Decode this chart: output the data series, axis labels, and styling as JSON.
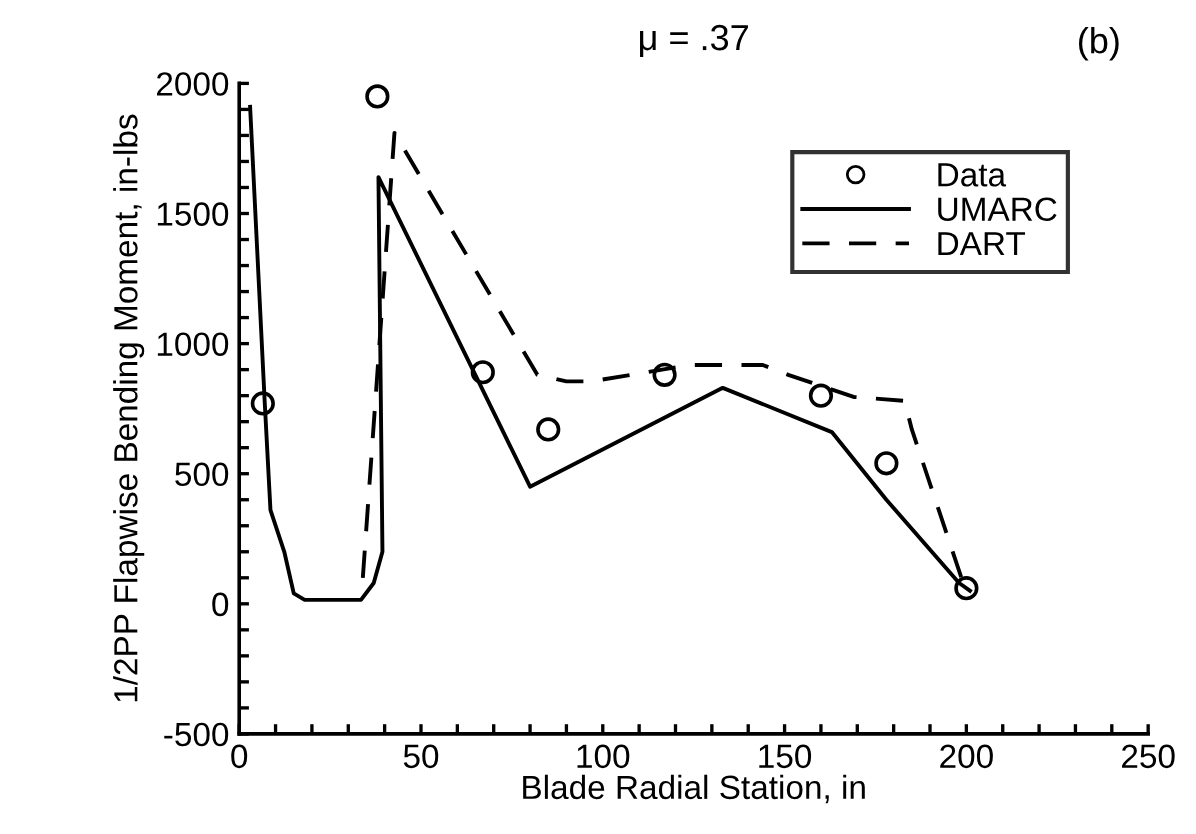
{
  "chart_data": {
    "type": "line",
    "title": "μ = .37",
    "xlabel": "Blade Radial Station, in",
    "ylabel": "1/2PP Flapwise Bending Moment, in-lbs",
    "annotations": [
      "(b)"
    ],
    "series": [
      {
        "name": "Data",
        "type": "scatter",
        "color": "#000000",
        "marker": "circle",
        "x": [
          6.5,
          38,
          67,
          85,
          117,
          160,
          178,
          200
        ],
        "values": [
          770,
          1950,
          890,
          670,
          880,
          800,
          540,
          60
        ]
      },
      {
        "name": "UMARC",
        "color": "#000000",
        "line_style": "solid",
        "x": [
          3,
          7,
          8.6,
          12.4,
          15,
          18,
          33.5,
          37,
          39.4,
          38.3,
          80,
          133,
          163,
          178,
          198,
          201
        ],
        "values": [
          1910,
          780,
          360,
          200,
          40,
          15,
          15,
          80,
          200,
          1640,
          450,
          830,
          660,
          400,
          80,
          50
        ]
      },
      {
        "name": "DART",
        "color": "#000000",
        "line_style": "dashed",
        "x": [
          34,
          42.7,
          82,
          90,
          97,
          124,
          144,
          151,
          169,
          183,
          185,
          199,
          200
        ],
        "values": [
          100,
          1810,
          880,
          855,
          855,
          918,
          918,
          880,
          795,
          780,
          670,
          85,
          60
        ]
      }
    ],
    "xlim": [
      0,
      250
    ],
    "ylim": [
      -500,
      2000
    ],
    "xticks": [
      0,
      {
        "value": 10,
        "label": null
      },
      {
        "value": 20,
        "label": null
      },
      {
        "value": 30,
        "label": null
      },
      {
        "value": 40,
        "label": null
      },
      50,
      {
        "value": 60,
        "label": null
      },
      {
        "value": 70,
        "label": null
      },
      {
        "value": 80,
        "label": null
      },
      {
        "value": 90,
        "label": null
      },
      100,
      {
        "value": 110,
        "label": null
      },
      {
        "value": 120,
        "label": null
      },
      {
        "value": 130,
        "label": null
      },
      {
        "value": 140,
        "label": null
      },
      150,
      {
        "value": 160,
        "label": null
      },
      {
        "value": 170,
        "label": null
      },
      {
        "value": 180,
        "label": null
      },
      {
        "value": 190,
        "label": null
      },
      200,
      {
        "value": 210,
        "label": null
      },
      {
        "value": 220,
        "label": null
      },
      {
        "value": 230,
        "label": null
      },
      {
        "value": 240,
        "label": null
      },
      250
    ],
    "yticks": [
      -500,
      {
        "value": -400,
        "label": null
      },
      {
        "value": -300,
        "label": null
      },
      {
        "value": -200,
        "label": null
      },
      {
        "value": -100,
        "label": null
      },
      0,
      {
        "value": 100,
        "label": null
      },
      {
        "value": 200,
        "label": null
      },
      {
        "value": 300,
        "label": null
      },
      {
        "value": 400,
        "label": null
      },
      500,
      {
        "value": 600,
        "label": null
      },
      {
        "value": 700,
        "label": null
      },
      {
        "value": 800,
        "label": null
      },
      {
        "value": 900,
        "label": null
      },
      1000,
      {
        "value": 1100,
        "label": null
      },
      {
        "value": 1200,
        "label": null
      },
      {
        "value": 1300,
        "label": null
      },
      {
        "value": 1400,
        "label": null
      },
      1500,
      {
        "value": 1600,
        "label": null
      },
      {
        "value": 1700,
        "label": null
      },
      {
        "value": 1800,
        "label": null
      },
      {
        "value": 1900,
        "label": null
      },
      2000
    ],
    "grid": false,
    "legend": "top right"
  }
}
